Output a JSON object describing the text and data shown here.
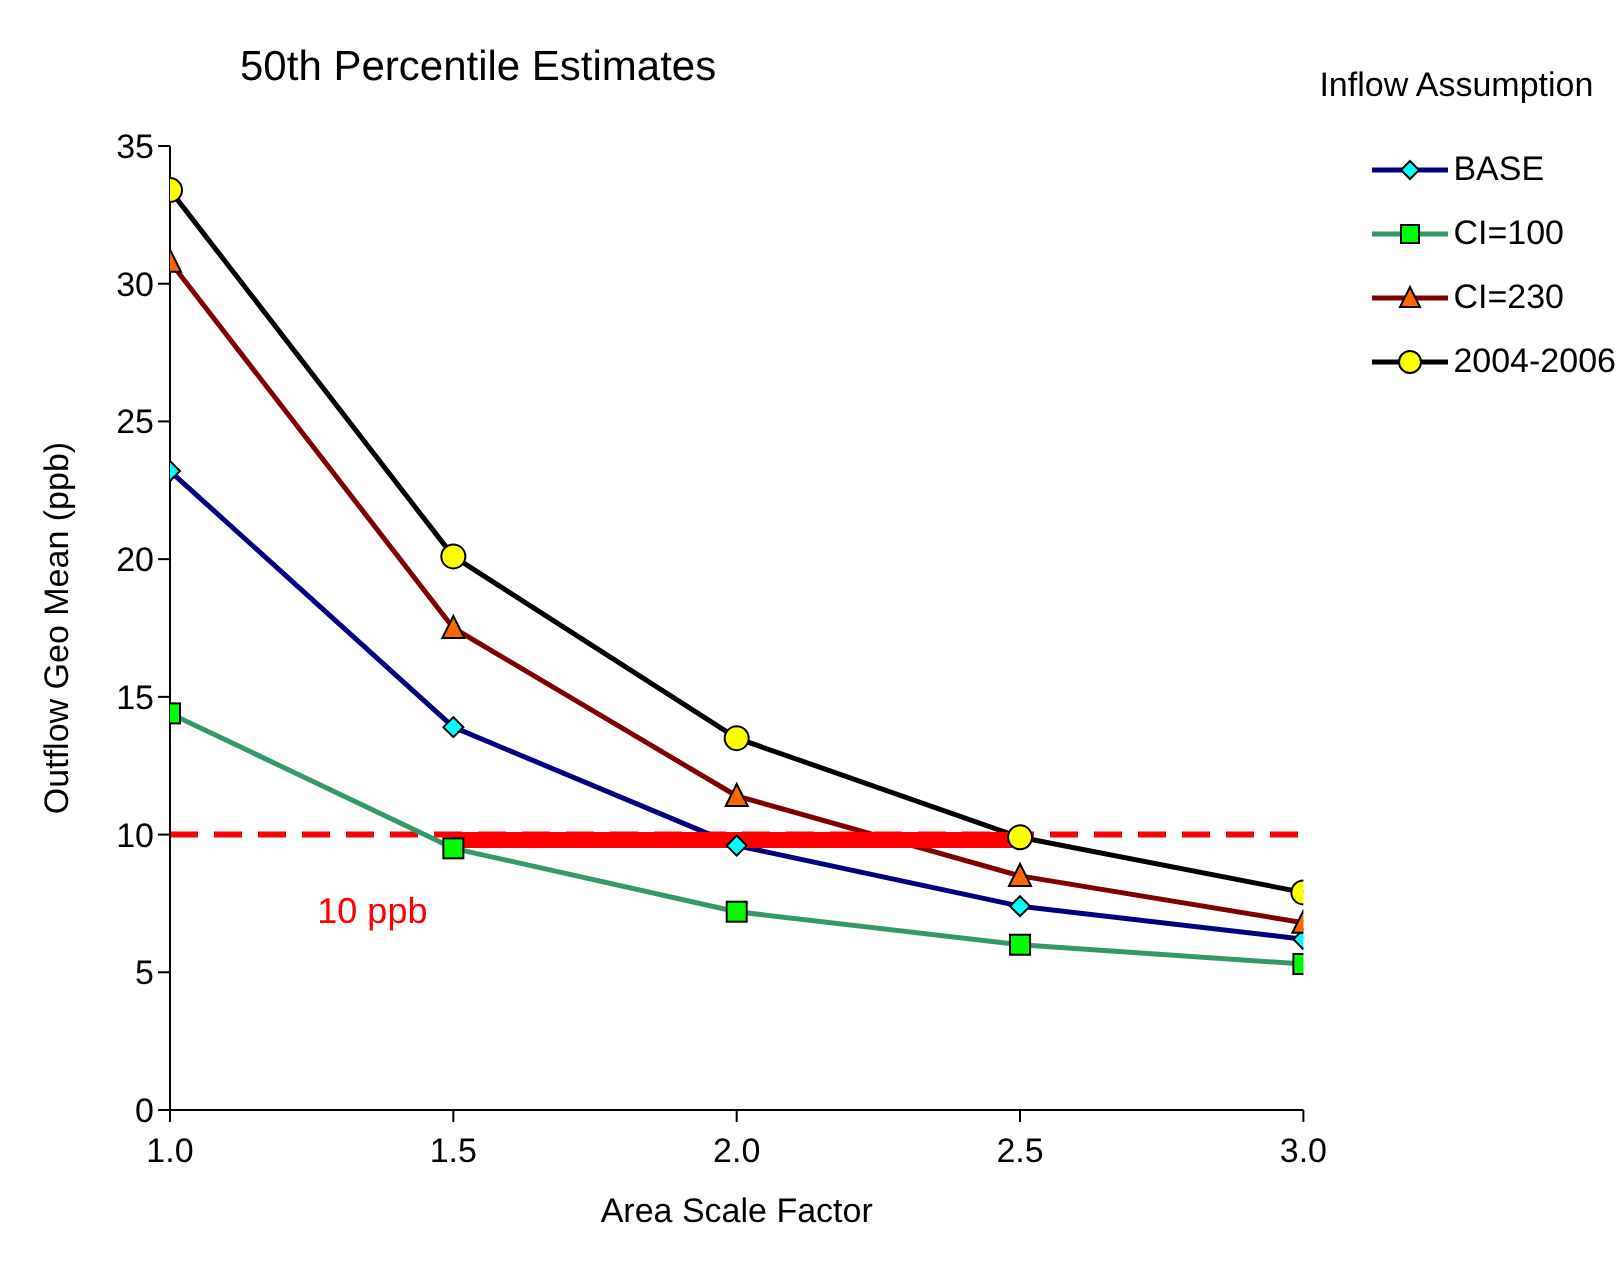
{
  "chart_data": {
    "type": "line",
    "title": "50th Percentile Estimates",
    "xlabel": "Area Scale Factor",
    "ylabel": "Outflow Geo Mean (ppb)",
    "legend_title": "Inflow Assumption",
    "x": [
      1.0,
      1.5,
      2.0,
      2.5,
      3.0
    ],
    "series": [
      {
        "name": "BASE",
        "color": "#000080",
        "marker": "diamond",
        "colors": [
          "#00ffff",
          "#00ffff",
          "#00ffff",
          "#00ffff",
          "#00ffff"
        ],
        "values": [
          23.2,
          13.9,
          9.6,
          7.4,
          6.2
        ]
      },
      {
        "name": "CI=100",
        "color": "#339966",
        "marker": "square",
        "colors": [
          "#00ff00",
          "#00ff00",
          "#00ff00",
          "#00ff00",
          "#00ff00"
        ],
        "values": [
          14.4,
          9.5,
          7.2,
          6.0,
          5.3
        ]
      },
      {
        "name": "CI=230",
        "color": "#800000",
        "marker": "triangle",
        "colors": [
          "#ff6600",
          "#ff6600",
          "#ff6600",
          "#ff6600",
          "#ff6600"
        ],
        "values": [
          30.8,
          17.5,
          11.4,
          8.5,
          6.8
        ]
      },
      {
        "name": "2004-2006",
        "color": "#000000",
        "marker": "circle",
        "colors": [
          "#ffff00",
          "#ffff00",
          "#ffff00",
          "#ffff00",
          "#ffff00"
        ],
        "values": [
          33.4,
          20.1,
          13.5,
          9.9,
          7.9
        ]
      },
      {
        "color": "#ff0000",
        "marker": "none",
        "x": [
          1.5,
          2.5
        ],
        "values": [
          9.8,
          9.8
        ]
      }
    ],
    "xlim": [
      1.0,
      3.0
    ],
    "xticks": [
      {
        "value": 1.0,
        "label": "1.0"
      },
      {
        "value": 1.5,
        "label": "1.5"
      },
      {
        "value": 2.0,
        "label": "2.0"
      },
      {
        "value": 2.5,
        "label": "2.5"
      },
      {
        "value": 3.0,
        "label": "3.0"
      }
    ],
    "ylim": [
      0,
      35
    ],
    "yticks": [
      0,
      5,
      10,
      15,
      20,
      25,
      30,
      35
    ],
    "ref_lines": [
      {
        "axis": "y",
        "value": 10,
        "label": "10  ppb",
        "color": "#ff0000",
        "line_style": "dashed"
      }
    ],
    "grid": false,
    "legend": "top right"
  }
}
